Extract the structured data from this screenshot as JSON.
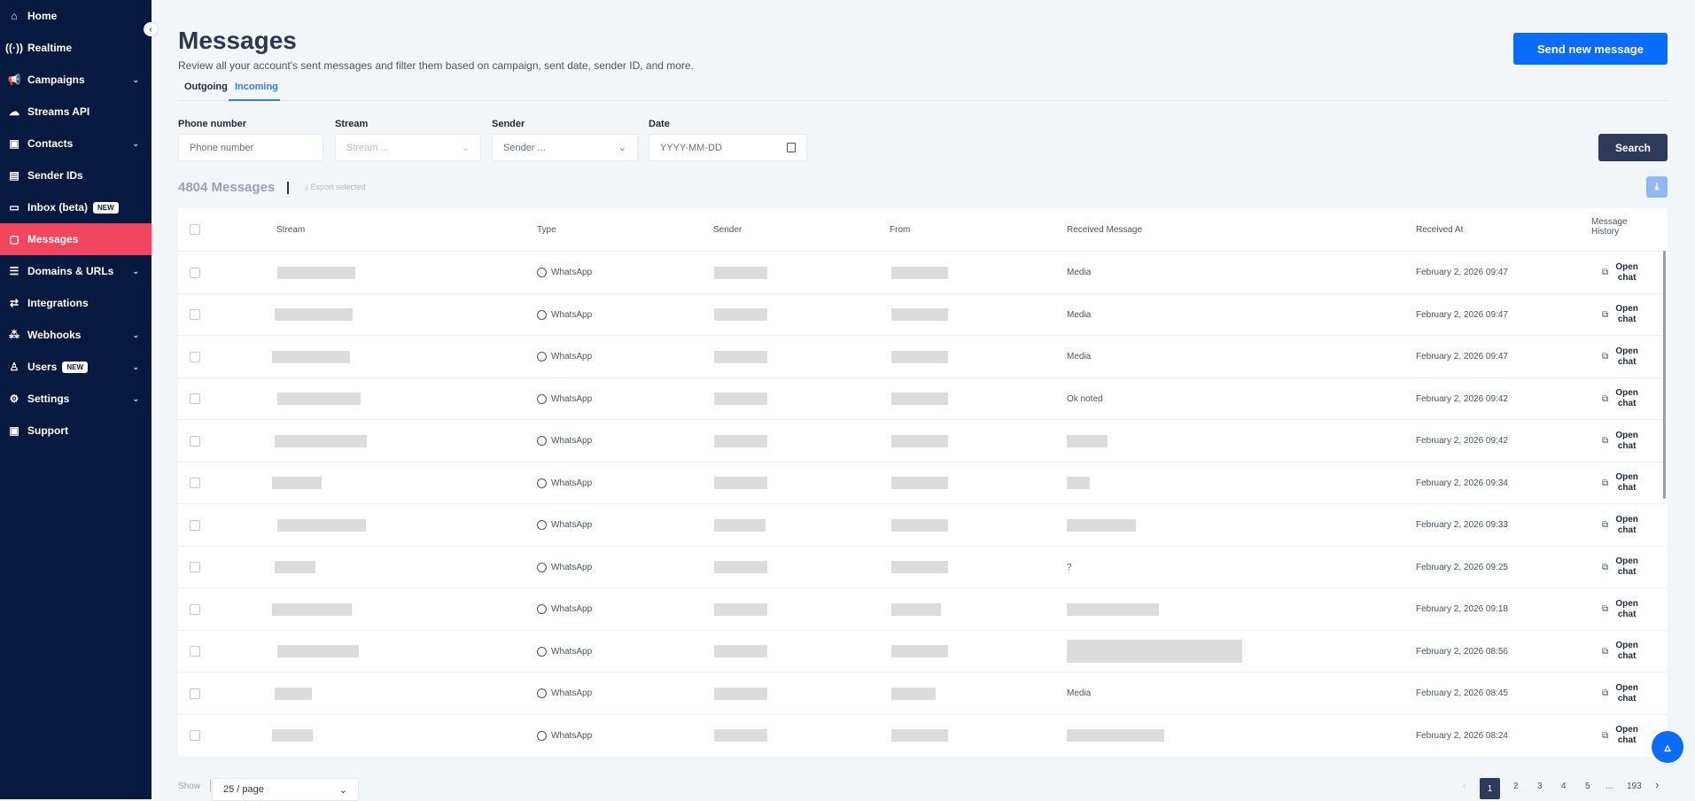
{
  "sidebar": {
    "items": [
      {
        "label": "Home",
        "icon": "home-icon",
        "glyph": "⌂"
      },
      {
        "label": "Realtime",
        "icon": "broadcast-icon",
        "glyph": "((·))"
      },
      {
        "label": "Campaigns",
        "icon": "megaphone-icon",
        "glyph": "📢",
        "chevron": true
      },
      {
        "label": "Streams API",
        "icon": "cloud-icon",
        "glyph": "☁"
      },
      {
        "label": "Contacts",
        "icon": "contact-card-icon",
        "glyph": "▣",
        "chevron": true
      },
      {
        "label": "Sender IDs",
        "icon": "id-message-icon",
        "glyph": "▤"
      },
      {
        "label": "Inbox (beta)",
        "icon": "inbox-icon",
        "glyph": "▭",
        "badge": "NEW"
      },
      {
        "label": "Messages",
        "icon": "messages-icon",
        "glyph": "▢",
        "active": true
      },
      {
        "label": "Domains & URLs",
        "icon": "server-icon",
        "glyph": "☰",
        "chevron": true
      },
      {
        "label": "Integrations",
        "icon": "sync-icon",
        "glyph": "⇄"
      },
      {
        "label": "Webhooks",
        "icon": "webhook-icon",
        "glyph": "⁂",
        "chevron": true
      },
      {
        "label": "Users",
        "icon": "user-icon",
        "glyph": "♙",
        "badge": "NEW",
        "chevron": true
      },
      {
        "label": "Settings",
        "icon": "gear-icon",
        "glyph": "⚙",
        "chevron": true
      },
      {
        "label": "Support",
        "icon": "help-icon",
        "glyph": "▣"
      }
    ]
  },
  "header": {
    "title": "Messages",
    "subtitle": "Review all your account's sent messages and filter them based on campaign, sent date, sender ID, and more.",
    "send_button": "Send new message"
  },
  "tabs": [
    {
      "label": "Outgoing"
    },
    {
      "label": "Incoming",
      "active": true
    }
  ],
  "filters": {
    "phone": {
      "label": "Phone number",
      "placeholder": "Phone number"
    },
    "stream": {
      "label": "Stream",
      "placeholder": "Stream ..."
    },
    "sender": {
      "label": "Sender",
      "placeholder": "Sender ..."
    },
    "date": {
      "label": "Date",
      "placeholder": "YYYY-MM-DD"
    },
    "search_button": "Search"
  },
  "summary": {
    "count": "4804 Messages",
    "export": "Export selected"
  },
  "table": {
    "columns": [
      "Stream",
      "Type",
      "Sender",
      "From",
      "Received Message",
      "Received At",
      "Message History"
    ],
    "rows": [
      {
        "type": "WhatsApp",
        "message": "Media",
        "received_at": "February 2, 2026 09:47"
      },
      {
        "type": "WhatsApp",
        "message": "Media",
        "received_at": "February 2, 2026 09:47"
      },
      {
        "type": "WhatsApp",
        "message": "Media",
        "received_at": "February 2, 2026 09:47"
      },
      {
        "type": "WhatsApp",
        "message": "Ok noted",
        "received_at": "February 2, 2026 09:42"
      },
      {
        "type": "WhatsApp",
        "message": null,
        "received_at": "February 2, 2026 09:42"
      },
      {
        "type": "WhatsApp",
        "message": null,
        "received_at": "February 2, 2026 09:34"
      },
      {
        "type": "WhatsApp",
        "message": null,
        "received_at": "February 2, 2026 09:33"
      },
      {
        "type": "WhatsApp",
        "message": "?",
        "received_at": "February 2, 2026 09:25"
      },
      {
        "type": "WhatsApp",
        "message": null,
        "received_at": "February 2, 2026 09:18"
      },
      {
        "type": "WhatsApp",
        "message": null,
        "received_at": "February 2, 2026 08:56"
      },
      {
        "type": "WhatsApp",
        "message": "Media",
        "received_at": "February 2, 2026 08:45"
      },
      {
        "type": "WhatsApp",
        "message": null,
        "received_at": "February 2, 2026 08:24"
      }
    ],
    "open_chat": "Open chat"
  },
  "pagination": {
    "show_label": "Show",
    "page_size": "25 / page",
    "pages": [
      "1",
      "2",
      "3",
      "4",
      "5",
      "...",
      "193"
    ],
    "current": "1"
  },
  "colors": {
    "sidebar": "#061a40",
    "active": "#f2455e",
    "primary": "#0a6cff",
    "search": "#2e3a59"
  }
}
